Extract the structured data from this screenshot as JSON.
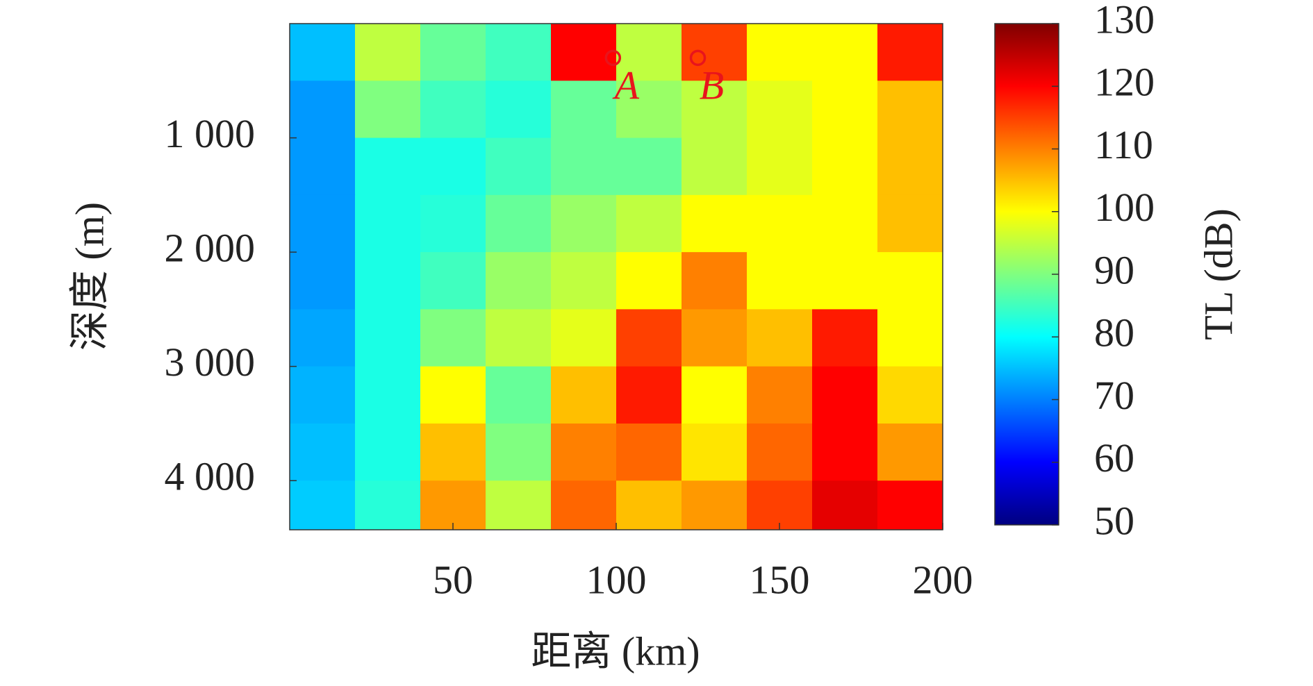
{
  "chart_data": {
    "type": "heatmap",
    "x_label": "距离 (km)",
    "y_label": "深度 (m)",
    "colorbar_label": "TL (dB)",
    "colormap": "jet",
    "x_edges": [
      0,
      20,
      40,
      60,
      80,
      100,
      120,
      140,
      160,
      180,
      200
    ],
    "y_edges": [
      0,
      500,
      1000,
      1500,
      2000,
      2500,
      3000,
      3500,
      4000,
      4430
    ],
    "values": [
      [
        75,
        95,
        88,
        85,
        120,
        95,
        115,
        100,
        100,
        118
      ],
      [
        72,
        90,
        85,
        83,
        88,
        92,
        95,
        98,
        100,
        105
      ],
      [
        72,
        82,
        82,
        85,
        88,
        88,
        95,
        98,
        100,
        105
      ],
      [
        72,
        82,
        83,
        88,
        92,
        95,
        100,
        100,
        100,
        105
      ],
      [
        72,
        82,
        85,
        92,
        95,
        100,
        110,
        100,
        100,
        100
      ],
      [
        73,
        82,
        90,
        95,
        98,
        115,
        108,
        105,
        118,
        100
      ],
      [
        74,
        82,
        100,
        88,
        105,
        118,
        100,
        110,
        120,
        103
      ],
      [
        75,
        82,
        105,
        90,
        110,
        112,
        102,
        112,
        120,
        108
      ],
      [
        76,
        83,
        108,
        95,
        112,
        105,
        108,
        115,
        122,
        120
      ]
    ],
    "xlim": [
      0,
      200
    ],
    "xticks": [
      50,
      100,
      150,
      200
    ],
    "ylim": [
      0,
      4430
    ],
    "y_reversed": true,
    "yticks": [
      {
        "value": 1000,
        "label": "1 000"
      },
      {
        "value": 2000,
        "label": "2 000"
      },
      {
        "value": 3000,
        "label": "3 000"
      },
      {
        "value": 4000,
        "label": "4 000"
      }
    ],
    "clim": [
      50,
      130
    ],
    "cticks": [
      50,
      60,
      70,
      80,
      90,
      100,
      110,
      120,
      130
    ],
    "annotations": [
      {
        "label": "A",
        "x": 99,
        "y": 300,
        "color": "#e8141c"
      },
      {
        "label": "B",
        "x": 125,
        "y": 300,
        "color": "#e8141c"
      }
    ]
  }
}
